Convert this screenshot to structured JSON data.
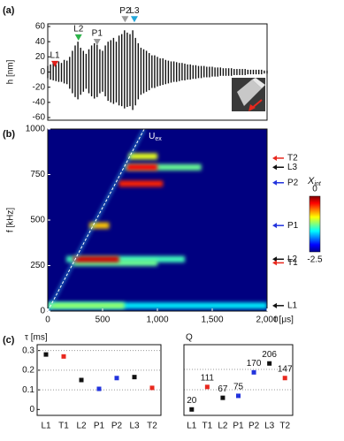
{
  "panel_a": {
    "label": "(a)",
    "type": "line",
    "ylabel": "h [nm]",
    "ylim": [
      -60,
      60
    ],
    "yticks": [
      -60,
      -40,
      -20,
      0,
      20,
      40,
      60
    ],
    "xlim": [
      0,
      2000
    ],
    "x": [
      0,
      25,
      50,
      75,
      100,
      125,
      150,
      175,
      200,
      225,
      250,
      275,
      300,
      325,
      350,
      375,
      400,
      425,
      450,
      475,
      500,
      525,
      550,
      575,
      600,
      625,
      650,
      675,
      700,
      725,
      750,
      775,
      800,
      825,
      850,
      875,
      900,
      925,
      950,
      975,
      1000,
      1025,
      1050,
      1075,
      1100,
      1125,
      1150,
      1175,
      1200,
      1225,
      1250,
      1275,
      1300,
      1325,
      1350,
      1375,
      1400,
      1425,
      1450,
      1475,
      1500,
      1525,
      1550,
      1575,
      1600,
      1625,
      1650,
      1675,
      1700,
      1725,
      1750,
      1775,
      1800,
      1825,
      1850,
      1875,
      1900,
      1925,
      1950,
      1975,
      2000
    ],
    "upper": [
      8,
      10,
      12,
      10,
      14,
      12,
      16,
      15,
      20,
      28,
      35,
      40,
      32,
      28,
      24,
      30,
      35,
      38,
      36,
      30,
      28,
      35,
      40,
      42,
      45,
      40,
      48,
      50,
      55,
      52,
      50,
      55,
      45,
      38,
      32,
      30,
      28,
      25,
      22,
      22,
      20,
      18,
      18,
      16,
      15,
      14,
      14,
      13,
      12,
      12,
      11,
      10,
      10,
      9,
      9,
      8,
      8,
      8,
      7,
      7,
      7,
      6,
      6,
      6,
      5,
      5,
      5,
      5,
      4,
      4,
      4,
      4,
      4,
      3,
      3,
      3,
      3,
      3,
      3,
      2,
      2
    ],
    "lower": [
      -8,
      -10,
      -11,
      -12,
      -13,
      -13,
      -15,
      -16,
      -22,
      -28,
      -33,
      -36,
      -30,
      -26,
      -22,
      -28,
      -32,
      -35,
      -33,
      -28,
      -26,
      -32,
      -38,
      -40,
      -42,
      -40,
      -44,
      -45,
      -48,
      -46,
      -45,
      -50,
      -44,
      -36,
      -30,
      -28,
      -26,
      -24,
      -21,
      -21,
      -19,
      -18,
      -17,
      -16,
      -15,
      -14,
      -13,
      -13,
      -12,
      -11,
      -11,
      -10,
      -10,
      -9,
      -9,
      -8,
      -8,
      -7,
      -7,
      -7,
      -6,
      -6,
      -6,
      -5,
      -5,
      -5,
      -5,
      -5,
      -4,
      -4,
      -4,
      -4,
      -4,
      -3,
      -3,
      -3,
      -3,
      -3,
      -3,
      -2,
      -2
    ],
    "color": "#111111",
    "markers": [
      {
        "label": "L1",
        "t": 65,
        "h": 10,
        "color": "#e0201b"
      },
      {
        "label": "L2",
        "t": 280,
        "h": 45,
        "color": "#2db34a"
      },
      {
        "label": "P1",
        "t": 450,
        "h": 39,
        "color": "#9a9a9a"
      },
      {
        "label": "P2",
        "t": 705,
        "h": 69,
        "color": "#9a9a9a"
      },
      {
        "label": "L3",
        "t": 790,
        "h": 69,
        "color": "#23a6d8"
      }
    ]
  },
  "panel_b": {
    "label": "(b)",
    "type": "heatmap",
    "ylabel": "f [kHz]",
    "xlabel": "t [μs]",
    "xlim": [
      0,
      2000
    ],
    "ylim": [
      0,
      1000
    ],
    "xticks": [
      0,
      500,
      {
        "value": 1000,
        "label": "1,000"
      },
      {
        "value": 1500,
        "label": "1,500"
      },
      {
        "value": 2000,
        "label": "2,000"
      }
    ],
    "yticks": [
      0,
      250,
      500,
      750,
      1000
    ],
    "bands": [
      {
        "f": 30,
        "t": [
          0,
          2000
        ],
        "x": -1.6
      },
      {
        "f": 30,
        "t": [
          0,
          700
        ],
        "x": -1.2
      },
      {
        "f": 285,
        "t": [
          170,
          1250
        ],
        "x": -1.4
      },
      {
        "f": 265,
        "t": [
          230,
          1000
        ],
        "x": -1.3
      },
      {
        "f": 285,
        "t": [
          230,
          650
        ],
        "x": -0.2
      },
      {
        "f": 470,
        "t": [
          380,
          560
        ],
        "x": -0.8
      },
      {
        "f": 700,
        "t": [
          650,
          1050
        ],
        "x": -0.4
      },
      {
        "f": 790,
        "t": [
          710,
          1400
        ],
        "x": -1.3
      },
      {
        "f": 790,
        "t": [
          720,
          1000
        ],
        "x": -0.3
      },
      {
        "f": 850,
        "t": [
          740,
          1000
        ],
        "x": -1.0
      }
    ],
    "uex": {
      "name": "U",
      "subscript": "ex",
      "t": [
        0,
        880
      ],
      "f": [
        0,
        1000
      ]
    },
    "colorbar": {
      "name": "X",
      "subscript": "int",
      "lim": [
        -2.5,
        0
      ],
      "ticks": [
        0,
        -2.5
      ]
    },
    "modes": [
      {
        "label": "T2",
        "f": 840,
        "color": "#e8281e"
      },
      {
        "label": "L3",
        "f": 790,
        "color": "#111111"
      },
      {
        "label": "P2",
        "f": 705,
        "color": "#2233dd"
      },
      {
        "label": "P1",
        "f": 470,
        "color": "#2233dd"
      },
      {
        "label": "L2",
        "f": 285,
        "color": "#111111"
      },
      {
        "label": "T1",
        "f": 265,
        "color": "#e8281e"
      },
      {
        "label": "L1",
        "f": 30,
        "color": "#111111"
      }
    ]
  },
  "panel_c": {
    "label": "(c)",
    "categories": [
      "L1",
      "T1",
      "L2",
      "P1",
      "P2",
      "L3",
      "T2"
    ],
    "colors": [
      "#111111",
      "#e8281e",
      "#111111",
      "#2233dd",
      "#2233dd",
      "#111111",
      "#e8281e"
    ],
    "tau": {
      "type": "scatter",
      "ylabel": "τ [ms]",
      "ylim": [
        -0.03,
        0.33
      ],
      "yticks": [
        0,
        0.1,
        0.2,
        0.3
      ],
      "values": [
        0.28,
        0.27,
        0.15,
        0.105,
        0.16,
        0.165,
        0.11
      ]
    },
    "q": {
      "type": "scatter",
      "ylabel": "Q",
      "ylim": [
        -4,
        282
      ],
      "values": [
        20,
        111,
        67,
        75,
        170,
        206,
        147
      ]
    }
  }
}
